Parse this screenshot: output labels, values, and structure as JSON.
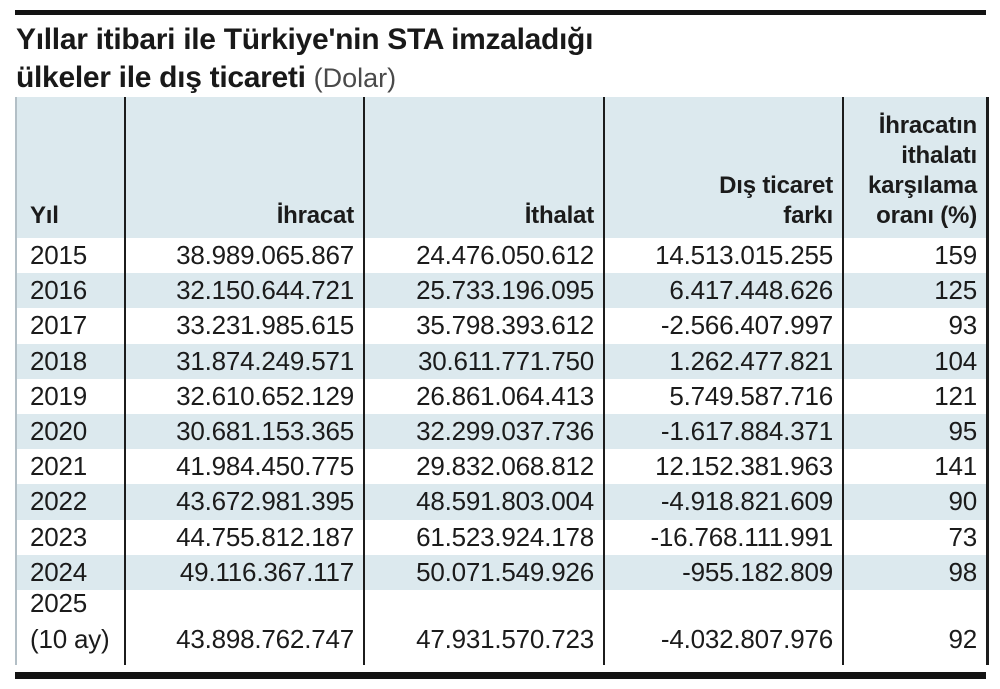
{
  "title": {
    "line1": "Yıllar itibari ile Türkiye'nin STA imzaladığı",
    "line2": "ülkeler ile dış ticareti",
    "unit": "(Dolar)"
  },
  "colors": {
    "highlight_row": "#dce9ee",
    "text": "#1b1b1b",
    "grid_line": "#1c1c1c",
    "left_edge_line": "#b3bfc6",
    "rule": "#131313"
  },
  "chart_data": {
    "type": "table",
    "title": "Yıllar itibari ile Türkiye'nin STA imzaladığı ülkeler ile dış ticareti",
    "unit": "Dolar",
    "columns": [
      {
        "key": "label",
        "label": "Yıl"
      },
      {
        "key": "ihracat",
        "label": "İhracat"
      },
      {
        "key": "ithalat",
        "label": "İthalat"
      },
      {
        "key": "fark",
        "label": "Dış ticaret\nfarkı"
      },
      {
        "key": "oran",
        "label": "İhracatın\nithalatı\nkarşılama\noranı (%)"
      }
    ],
    "rows": [
      {
        "label": "2015",
        "ihracat": 38989065867,
        "ithalat": 24476050612,
        "fark": 14513015255,
        "oran": 159
      },
      {
        "label": "2016",
        "ihracat": 32150644721,
        "ithalat": 25733196095,
        "fark": 6417448626,
        "oran": 125
      },
      {
        "label": "2017",
        "ihracat": 33231985615,
        "ithalat": 35798393612,
        "fark": -2566407997,
        "oran": 93
      },
      {
        "label": "2018",
        "ihracat": 31874249571,
        "ithalat": 30611771750,
        "fark": 1262477821,
        "oran": 104
      },
      {
        "label": "2019",
        "ihracat": 32610652129,
        "ithalat": 26861064413,
        "fark": 5749587716,
        "oran": 121
      },
      {
        "label": "2020",
        "ihracat": 30681153365,
        "ithalat": 32299037736,
        "fark": -1617884371,
        "oran": 95
      },
      {
        "label": "2021",
        "ihracat": 41984450775,
        "ithalat": 29832068812,
        "fark": 12152381963,
        "oran": 141
      },
      {
        "label": "2022",
        "ihracat": 43672981395,
        "ithalat": 48591803004,
        "fark": -4918821609,
        "oran": 90
      },
      {
        "label": "2023",
        "ihracat": 44755812187,
        "ithalat": 61523924178,
        "fark": -16768111991,
        "oran": 73
      },
      {
        "label": "2024",
        "ihracat": 49116367117,
        "ithalat": 50071549926,
        "fark": -955182809,
        "oran": 98
      },
      {
        "label": "2025\n(10 ay)",
        "ihracat": 43898762747,
        "ithalat": 47931570723,
        "fark": -4032807976,
        "oran": 92
      }
    ]
  }
}
